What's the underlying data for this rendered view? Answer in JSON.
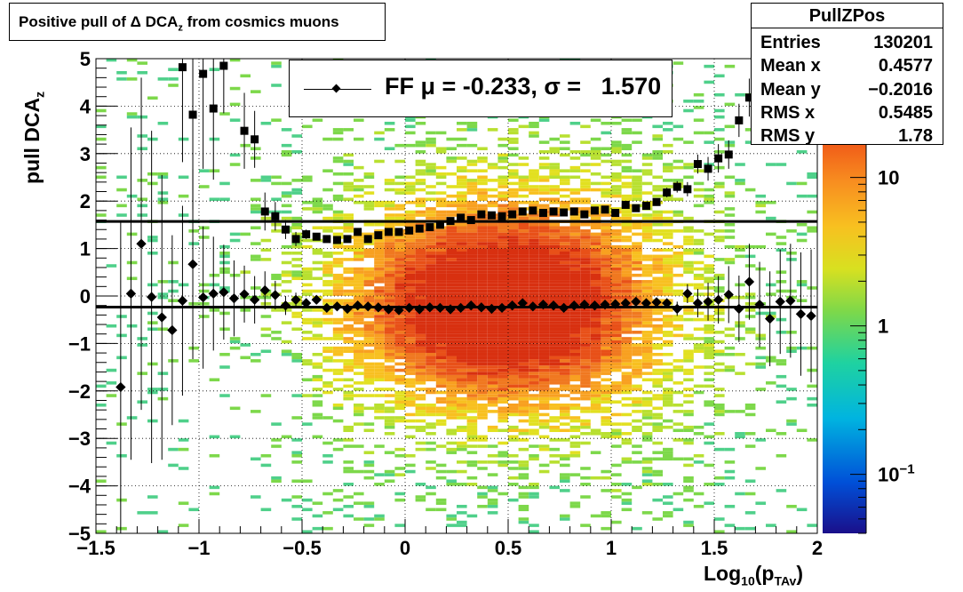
{
  "title_box": {
    "text_main": "Positive pull of Δ DCA",
    "text_sub": "z",
    "text_rest": " from cosmics muons"
  },
  "stats_box": {
    "name": "PullZPos",
    "rows": [
      {
        "label": "Entries",
        "value": "130201"
      },
      {
        "label": "Mean x",
        "value": "0.4577"
      },
      {
        "label": "Mean y",
        "value": "−0.2016"
      },
      {
        "label": "RMS x",
        "value": "0.5485"
      },
      {
        "label": "RMS y",
        "value": "1.78"
      }
    ]
  },
  "legend": {
    "entry": "FF μ = -0.233, σ =   1.570"
  },
  "colors": {
    "profile_marker": "#000000",
    "fit_line": "#000000",
    "palette": "rainbow (blue→cyan→green→yellow→orange→red)"
  },
  "chart_data": {
    "type": "heatmap",
    "title": "Positive pull of Δ DCA_z from cosmics muons",
    "xlabel": "Log10(pTAv)",
    "xlabel_main": "Log",
    "xlabel_sub1": "10",
    "xlabel_paren": "(p",
    "xlabel_sub2": "TAv",
    "xlabel_close": ")",
    "ylabel": "pull DCA_z",
    "ylabel_main": "pull DCA",
    "ylabel_sub": "z",
    "xlim": [
      -1.5,
      2.0
    ],
    "ylim": [
      -5,
      5
    ],
    "zscale": "log",
    "zlim": [
      0.04,
      30
    ],
    "x_ticks": [
      "−1.5",
      "−1",
      "−0.5",
      "0",
      "0.5",
      "1",
      "1.5",
      "2"
    ],
    "x_tick_values": [
      -1.5,
      -1,
      -0.5,
      0,
      0.5,
      1,
      1.5,
      2
    ],
    "y_ticks": [
      "−5",
      "−4",
      "−3",
      "−2",
      "−1",
      "0",
      "1",
      "2",
      "3",
      "4",
      "5"
    ],
    "y_tick_values": [
      -5,
      -4,
      -3,
      -2,
      -1,
      0,
      1,
      2,
      3,
      4,
      5
    ],
    "z_ticks": [
      {
        "label": "10",
        "exp": "−1",
        "value": 0.1
      },
      {
        "label": "1",
        "exp": "",
        "value": 1
      },
      {
        "label": "10",
        "exp": "",
        "value": 10
      }
    ],
    "grid": true,
    "legend_position": "top-center",
    "fit_lines": [
      {
        "name": "mean",
        "y": -0.233
      },
      {
        "name": "sigma",
        "y": 1.57
      }
    ],
    "mean_profile": [
      {
        "x": -1.38,
        "y": -1.92,
        "err": 3.5
      },
      {
        "x": -1.33,
        "y": 0.05,
        "err": 3.5
      },
      {
        "x": -1.28,
        "y": 1.1,
        "err": 3.5
      },
      {
        "x": -1.23,
        "y": -0.02,
        "err": 3.5
      },
      {
        "x": -1.18,
        "y": -0.45,
        "err": 3.0
      },
      {
        "x": -1.13,
        "y": -0.72,
        "err": 2.0
      },
      {
        "x": -1.08,
        "y": -0.1,
        "err": 2.0
      },
      {
        "x": -1.03,
        "y": 0.67,
        "err": 2.0
      },
      {
        "x": -0.98,
        "y": -0.03,
        "err": 1.5
      },
      {
        "x": -0.93,
        "y": 0.05,
        "err": 1.2
      },
      {
        "x": -0.88,
        "y": 0.08,
        "err": 1.0
      },
      {
        "x": -0.83,
        "y": -0.05,
        "err": 0.8
      },
      {
        "x": -0.78,
        "y": 0.04,
        "err": 0.6
      },
      {
        "x": -0.73,
        "y": -0.08,
        "err": 0.5
      },
      {
        "x": -0.68,
        "y": 0.12,
        "err": 0.4
      },
      {
        "x": -0.63,
        "y": 0.02,
        "err": 0.3
      },
      {
        "x": -0.58,
        "y": -0.2,
        "err": 0.2
      },
      {
        "x": -0.53,
        "y": -0.08,
        "err": 0.15
      },
      {
        "x": -0.48,
        "y": -0.15,
        "err": 0.1
      },
      {
        "x": -0.43,
        "y": -0.08,
        "err": 0.08
      },
      {
        "x": -0.38,
        "y": -0.25,
        "err": 0.05
      },
      {
        "x": -0.33,
        "y": -0.22,
        "err": 0.05
      },
      {
        "x": -0.28,
        "y": -0.27,
        "err": 0.04
      },
      {
        "x": -0.23,
        "y": -0.2,
        "err": 0.04
      },
      {
        "x": -0.18,
        "y": -0.22,
        "err": 0.03
      },
      {
        "x": -0.13,
        "y": -0.24,
        "err": 0.03
      },
      {
        "x": -0.08,
        "y": -0.28,
        "err": 0.03
      },
      {
        "x": -0.03,
        "y": -0.3,
        "err": 0.03
      },
      {
        "x": 0.02,
        "y": -0.25,
        "err": 0.03
      },
      {
        "x": 0.07,
        "y": -0.28,
        "err": 0.03
      },
      {
        "x": 0.12,
        "y": -0.24,
        "err": 0.03
      },
      {
        "x": 0.17,
        "y": -0.25,
        "err": 0.03
      },
      {
        "x": 0.22,
        "y": -0.28,
        "err": 0.03
      },
      {
        "x": 0.27,
        "y": -0.25,
        "err": 0.03
      },
      {
        "x": 0.32,
        "y": -0.2,
        "err": 0.03
      },
      {
        "x": 0.37,
        "y": -0.24,
        "err": 0.03
      },
      {
        "x": 0.42,
        "y": -0.27,
        "err": 0.03
      },
      {
        "x": 0.47,
        "y": -0.25,
        "err": 0.03
      },
      {
        "x": 0.52,
        "y": -0.2,
        "err": 0.03
      },
      {
        "x": 0.57,
        "y": -0.15,
        "err": 0.03
      },
      {
        "x": 0.62,
        "y": -0.22,
        "err": 0.03
      },
      {
        "x": 0.67,
        "y": -0.18,
        "err": 0.03
      },
      {
        "x": 0.72,
        "y": -0.2,
        "err": 0.03
      },
      {
        "x": 0.77,
        "y": -0.25,
        "err": 0.03
      },
      {
        "x": 0.82,
        "y": -0.2,
        "err": 0.03
      },
      {
        "x": 0.87,
        "y": -0.18,
        "err": 0.03
      },
      {
        "x": 0.92,
        "y": -0.2,
        "err": 0.03
      },
      {
        "x": 0.97,
        "y": -0.18,
        "err": 0.04
      },
      {
        "x": 1.02,
        "y": -0.17,
        "err": 0.04
      },
      {
        "x": 1.07,
        "y": -0.15,
        "err": 0.05
      },
      {
        "x": 1.12,
        "y": -0.12,
        "err": 0.05
      },
      {
        "x": 1.17,
        "y": -0.15,
        "err": 0.06
      },
      {
        "x": 1.22,
        "y": -0.13,
        "err": 0.08
      },
      {
        "x": 1.27,
        "y": -0.15,
        "err": 0.1
      },
      {
        "x": 1.32,
        "y": -0.27,
        "err": 0.15
      },
      {
        "x": 1.37,
        "y": 0.05,
        "err": 0.2
      },
      {
        "x": 1.42,
        "y": -0.15,
        "err": 0.3
      },
      {
        "x": 1.47,
        "y": -0.12,
        "err": 0.4
      },
      {
        "x": 1.52,
        "y": -0.08,
        "err": 0.5
      },
      {
        "x": 1.57,
        "y": 0.03,
        "err": 0.6
      },
      {
        "x": 1.62,
        "y": -0.27,
        "err": 0.7
      },
      {
        "x": 1.67,
        "y": 0.3,
        "err": 0.8
      },
      {
        "x": 1.72,
        "y": -0.18,
        "err": 0.9
      },
      {
        "x": 1.77,
        "y": -0.48,
        "err": 1.0
      },
      {
        "x": 1.82,
        "y": -0.12,
        "err": 1.1
      },
      {
        "x": 1.87,
        "y": -0.1,
        "err": 1.2
      },
      {
        "x": 1.92,
        "y": -0.38,
        "err": 1.3
      },
      {
        "x": 1.97,
        "y": -0.42,
        "err": 1.4
      }
    ],
    "rms_profile": [
      {
        "x": -1.08,
        "y": 4.82,
        "err": 2.0
      },
      {
        "x": -1.03,
        "y": 3.82,
        "err": 2.0
      },
      {
        "x": -0.98,
        "y": 4.68,
        "err": 2.0
      },
      {
        "x": -0.93,
        "y": 3.95,
        "err": 1.5
      },
      {
        "x": -0.88,
        "y": 4.85,
        "err": 1.0
      },
      {
        "x": -0.78,
        "y": 3.48,
        "err": 0.8
      },
      {
        "x": -0.73,
        "y": 3.3,
        "err": 0.6
      },
      {
        "x": -0.68,
        "y": 1.78,
        "err": 0.4
      },
      {
        "x": -0.63,
        "y": 1.68,
        "err": 0.3
      },
      {
        "x": -0.58,
        "y": 1.4,
        "err": 0.2
      },
      {
        "x": -0.53,
        "y": 1.2,
        "err": 0.15
      },
      {
        "x": -0.48,
        "y": 1.3,
        "err": 0.1
      },
      {
        "x": -0.43,
        "y": 1.25,
        "err": 0.08
      },
      {
        "x": -0.38,
        "y": 1.2,
        "err": 0.05
      },
      {
        "x": -0.33,
        "y": 1.18,
        "err": 0.05
      },
      {
        "x": -0.28,
        "y": 1.2,
        "err": 0.04
      },
      {
        "x": -0.23,
        "y": 1.35,
        "err": 0.04
      },
      {
        "x": -0.18,
        "y": 1.2,
        "err": 0.03
      },
      {
        "x": -0.13,
        "y": 1.28,
        "err": 0.03
      },
      {
        "x": -0.08,
        "y": 1.35,
        "err": 0.03
      },
      {
        "x": -0.03,
        "y": 1.35,
        "err": 0.03
      },
      {
        "x": 0.02,
        "y": 1.38,
        "err": 0.03
      },
      {
        "x": 0.07,
        "y": 1.42,
        "err": 0.03
      },
      {
        "x": 0.12,
        "y": 1.45,
        "err": 0.03
      },
      {
        "x": 0.17,
        "y": 1.5,
        "err": 0.03
      },
      {
        "x": 0.22,
        "y": 1.58,
        "err": 0.03
      },
      {
        "x": 0.27,
        "y": 1.65,
        "err": 0.03
      },
      {
        "x": 0.32,
        "y": 1.6,
        "err": 0.03
      },
      {
        "x": 0.37,
        "y": 1.72,
        "err": 0.03
      },
      {
        "x": 0.42,
        "y": 1.7,
        "err": 0.03
      },
      {
        "x": 0.47,
        "y": 1.68,
        "err": 0.03
      },
      {
        "x": 0.52,
        "y": 1.72,
        "err": 0.03
      },
      {
        "x": 0.57,
        "y": 1.78,
        "err": 0.03
      },
      {
        "x": 0.62,
        "y": 1.8,
        "err": 0.03
      },
      {
        "x": 0.67,
        "y": 1.75,
        "err": 0.03
      },
      {
        "x": 0.72,
        "y": 1.78,
        "err": 0.03
      },
      {
        "x": 0.77,
        "y": 1.76,
        "err": 0.03
      },
      {
        "x": 0.82,
        "y": 1.78,
        "err": 0.03
      },
      {
        "x": 0.87,
        "y": 1.72,
        "err": 0.03
      },
      {
        "x": 0.92,
        "y": 1.8,
        "err": 0.03
      },
      {
        "x": 0.97,
        "y": 1.82,
        "err": 0.04
      },
      {
        "x": 1.02,
        "y": 1.75,
        "err": 0.04
      },
      {
        "x": 1.07,
        "y": 1.92,
        "err": 0.05
      },
      {
        "x": 1.12,
        "y": 1.85,
        "err": 0.05
      },
      {
        "x": 1.17,
        "y": 1.9,
        "err": 0.06
      },
      {
        "x": 1.22,
        "y": 1.98,
        "err": 0.08
      },
      {
        "x": 1.27,
        "y": 2.18,
        "err": 0.1
      },
      {
        "x": 1.32,
        "y": 2.3,
        "err": 0.12
      },
      {
        "x": 1.37,
        "y": 2.25,
        "err": 0.15
      },
      {
        "x": 1.42,
        "y": 2.78,
        "err": 0.2
      },
      {
        "x": 1.47,
        "y": 2.68,
        "err": 0.25
      },
      {
        "x": 1.52,
        "y": 2.9,
        "err": 0.3
      },
      {
        "x": 1.57,
        "y": 2.98,
        "err": 0.3
      },
      {
        "x": 1.62,
        "y": 3.7,
        "err": 0.35
      },
      {
        "x": 1.67,
        "y": 4.18,
        "err": 0.4
      }
    ]
  }
}
